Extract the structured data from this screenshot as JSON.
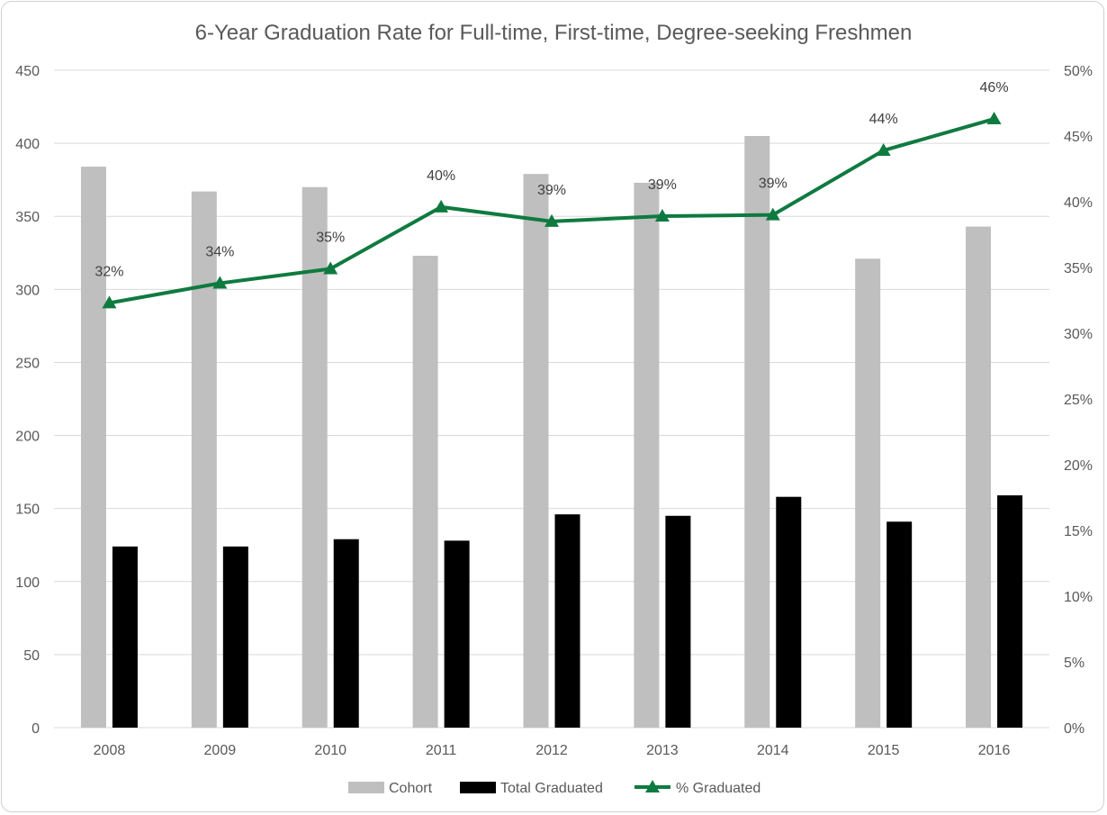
{
  "chart_data": {
    "type": "bar",
    "title": "6-Year Graduation Rate for Full-time, First-time, Degree-seeking Freshmen",
    "categories": [
      "2008",
      "2009",
      "2010",
      "2011",
      "2012",
      "2013",
      "2014",
      "2015",
      "2016"
    ],
    "series": [
      {
        "name": "Cohort",
        "type": "bar",
        "axis": "left",
        "color": "#bfbfbf",
        "values": [
          384,
          367,
          370,
          323,
          379,
          373,
          405,
          321,
          343
        ]
      },
      {
        "name": "Total Graduated",
        "type": "bar",
        "axis": "left",
        "color": "#000000",
        "values": [
          124,
          124,
          129,
          128,
          146,
          145,
          158,
          141,
          159
        ]
      },
      {
        "name": "% Graduated",
        "type": "line",
        "axis": "right",
        "color": "#0f7a40",
        "marker": "triangle",
        "values": [
          32.3,
          33.8,
          34.9,
          39.6,
          38.5,
          38.9,
          39.0,
          43.9,
          46.3
        ],
        "data_labels": [
          "32%",
          "34%",
          "35%",
          "40%",
          "39%",
          "39%",
          "39%",
          "44%",
          "46%"
        ]
      }
    ],
    "y_left": {
      "min": 0,
      "max": 450,
      "step": 50,
      "tick_labels": [
        "0",
        "50",
        "100",
        "150",
        "200",
        "250",
        "300",
        "350",
        "400",
        "450"
      ]
    },
    "y_right": {
      "min": 0,
      "max": 50,
      "step": 5,
      "tick_labels": [
        "0%",
        "5%",
        "10%",
        "15%",
        "20%",
        "25%",
        "30%",
        "35%",
        "40%",
        "45%",
        "50%"
      ]
    },
    "grid": true,
    "legend": {
      "position": "bottom",
      "items": [
        "Cohort",
        "Total Graduated",
        "% Graduated"
      ]
    }
  }
}
